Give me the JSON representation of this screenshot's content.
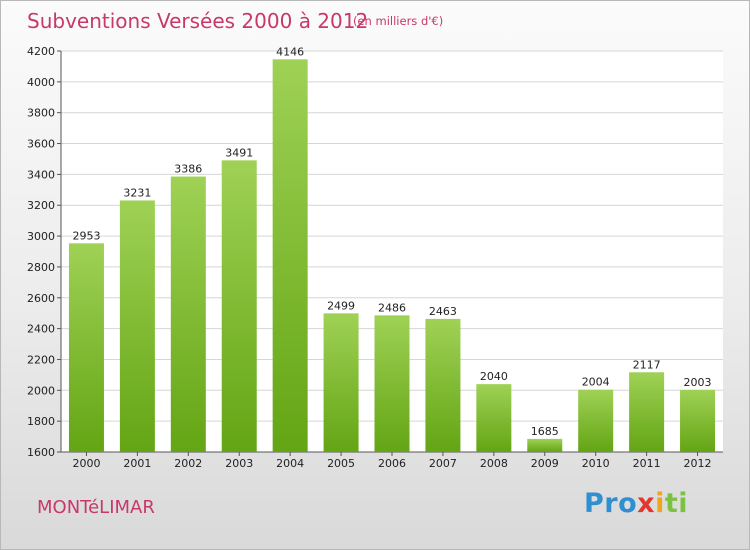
{
  "header": {
    "title": "Subventions Versées 2000 à 2012",
    "subtitle": "(en milliers d'€)"
  },
  "footer": {
    "city": "MONTéLIMAR",
    "logo": [
      "Pro",
      "x",
      "i",
      "ti"
    ]
  },
  "colors": {
    "accent": "#c7386b",
    "bar_top": "#9fd155",
    "bar_bottom": "#63a514"
  },
  "chart_data": {
    "type": "bar",
    "categories": [
      "2000",
      "2001",
      "2002",
      "2003",
      "2004",
      "2005",
      "2006",
      "2007",
      "2008",
      "2009",
      "2010",
      "2011",
      "2012"
    ],
    "values": [
      2953,
      3231,
      3386,
      3491,
      4146,
      2499,
      2486,
      2463,
      2040,
      1685,
      2004,
      2117,
      2003
    ],
    "title": "Subventions Versées 2000 à 2012",
    "subtitle": "(en milliers d'€)",
    "ylim": [
      1600,
      4200
    ],
    "yticks": [
      1600,
      1800,
      2000,
      2200,
      2400,
      2600,
      2800,
      3000,
      3200,
      3400,
      3600,
      3800,
      4000,
      4200
    ],
    "grid": true
  }
}
